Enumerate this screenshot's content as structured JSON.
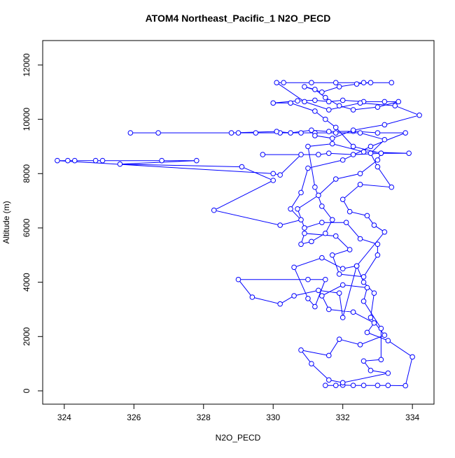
{
  "chart_data": {
    "type": "line",
    "markers": true,
    "title": "ATOM4 Northeast_Pacific_1 N2O_PECD",
    "x_label": "N2O_PECD",
    "y_label": "Altitude (m)",
    "color": "#0000ff",
    "xlim": [
      323.38,
      334.62
    ],
    "ylim": [
      -490,
      12900
    ],
    "xticks": [
      324,
      326,
      328,
      330,
      332,
      334
    ],
    "yticks": [
      0,
      2000,
      4000,
      6000,
      8000,
      10000,
      12000
    ],
    "x": [
      331.5,
      331.8,
      332.0,
      332.3,
      332.6,
      333.0,
      333.3,
      333.8,
      334.0,
      333.3,
      332.7,
      332.9,
      332.3,
      331.6,
      331.4,
      332.0,
      332.7,
      332.6,
      333.1,
      333.1,
      332.6,
      332.8,
      333.3,
      332.0,
      331.6,
      331.1,
      330.8,
      331.6,
      331.9,
      332.5,
      333.2,
      332.8,
      332.9,
      332.6,
      332.4,
      332.0,
      331.4,
      330.6,
      331.0,
      331.2,
      331.5,
      331.0,
      329.0,
      329.4,
      330.2,
      330.6,
      331.3,
      331.9,
      332.0,
      332.4,
      333.2,
      332.9,
      332.7,
      332.2,
      332.0,
      332.5,
      333.4,
      333.0,
      332.8,
      333.2,
      332.5,
      331.8,
      331.2,
      330.8,
      330.2,
      329.5,
      329.0,
      326.7,
      325.9,
      328.8,
      330.1,
      330.5,
      331.1,
      331.6,
      332.3,
      333.0,
      333.8,
      332.8,
      332.0,
      331.0,
      330.8,
      330.5,
      330.8,
      330.2,
      328.3,
      330.0,
      329.1,
      325.6,
      327.8,
      326.8,
      325.1,
      324.9,
      324.3,
      324.1,
      323.8,
      330.0,
      330.2,
      330.8,
      329.7,
      331.3,
      331.6,
      332.3,
      333.1,
      333.9,
      332.6,
      331.7,
      331.0,
      331.2,
      331.4,
      331.7,
      331.5,
      331.1,
      330.8,
      330.9,
      331.8,
      332.2,
      331.7,
      331.9,
      332.6,
      333.0,
      333.0,
      332.5,
      332.1,
      331.4,
      330.9,
      330.7,
      331.3,
      331.8,
      332.5,
      333.0,
      333.1,
      332.3,
      331.8,
      331.5,
      331.2,
      330.5,
      330.0,
      330.7,
      331.2,
      331.6,
      332.0,
      332.6,
      333.2,
      333.6,
      333.0,
      332.3,
      331.9,
      331.5,
      331.2,
      330.9,
      331.4,
      331.9,
      332.4,
      332.8,
      333.4,
      332.6,
      331.8,
      331.1,
      330.3,
      330.1,
      330.9,
      331.6,
      332.5,
      333.5,
      334.2,
      333.2,
      332.3,
      331.7,
      331.2
    ],
    "values": [
      200,
      200,
      210,
      200,
      200,
      200,
      200,
      190,
      1250,
      1850,
      2150,
      2500,
      2900,
      3000,
      3500,
      3900,
      3800,
      3300,
      2300,
      1150,
      1100,
      750,
      650,
      300,
      400,
      1000,
      1500,
      1300,
      1900,
      1700,
      2050,
      2700,
      3600,
      4000,
      4600,
      4500,
      4900,
      4550,
      3400,
      3100,
      4100,
      4100,
      4100,
      3450,
      3200,
      3500,
      3700,
      3600,
      2700,
      4600,
      5850,
      6100,
      6450,
      6600,
      7050,
      7600,
      7500,
      8250,
      8750,
      9250,
      9500,
      9500,
      9500,
      9500,
      9500,
      9500,
      9500,
      9500,
      9500,
      9500,
      9550,
      9500,
      9600,
      9550,
      9560,
      9500,
      9500,
      9000,
      8500,
      8200,
      7300,
      6700,
      6300,
      6100,
      6650,
      7750,
      8250,
      8350,
      8480,
      8480,
      8480,
      8480,
      8480,
      8480,
      8480,
      8000,
      7950,
      8700,
      8700,
      8700,
      8750,
      8700,
      8750,
      8750,
      8800,
      9100,
      9000,
      7500,
      6800,
      6300,
      5800,
      5500,
      5400,
      5800,
      5700,
      5200,
      5000,
      4300,
      4200,
      5000,
      5400,
      5600,
      6200,
      6200,
      6000,
      6700,
      7200,
      7800,
      8000,
      8500,
      8750,
      9000,
      9700,
      10000,
      10300,
      10600,
      10600,
      10680,
      10700,
      10650,
      10700,
      10650,
      10650,
      10650,
      10450,
      10350,
      10500,
      10800,
      11100,
      11200,
      11000,
      11200,
      11300,
      11350,
      11350,
      11350,
      11350,
      11350,
      11350,
      11350,
      10650,
      10350,
      10600,
      10500,
      10150,
      9800,
      9600,
      9300,
      9400
    ]
  }
}
